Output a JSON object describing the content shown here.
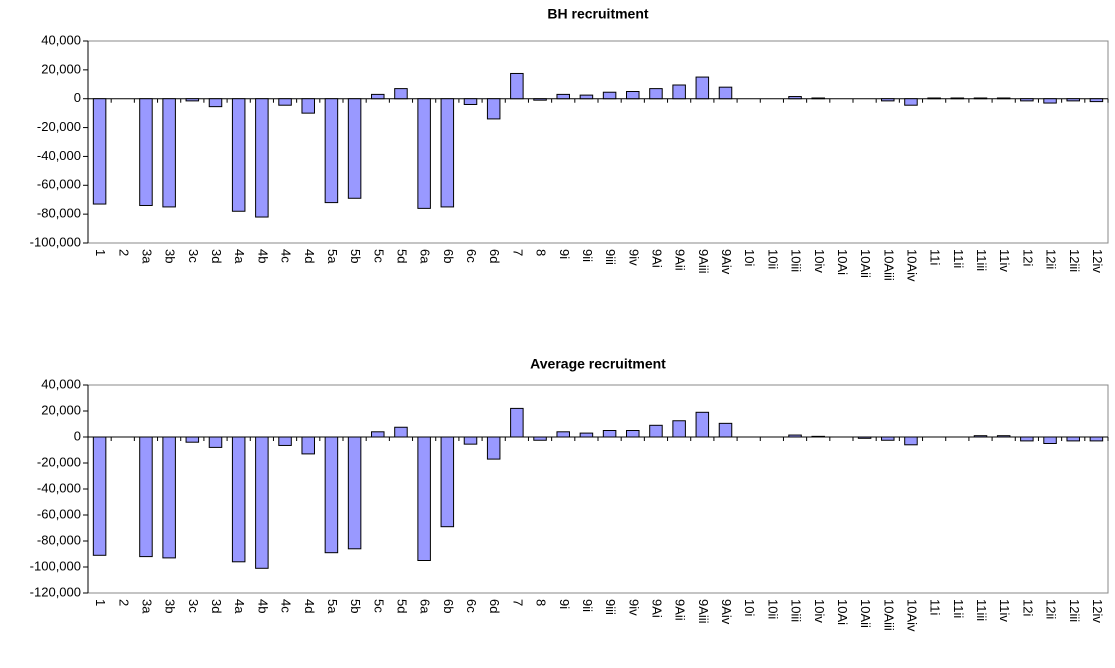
{
  "chart_data": [
    {
      "type": "bar",
      "title": "BH recruitment",
      "color": "#9999ff",
      "categories": [
        "1",
        "2",
        "3a",
        "3b",
        "3c",
        "3d",
        "4a",
        "4b",
        "4c",
        "4d",
        "5a",
        "5b",
        "5c",
        "5d",
        "6a",
        "6b",
        "6c",
        "6d",
        "7",
        "8",
        "9i",
        "9ii",
        "9iii",
        "9iv",
        "9Ai",
        "9Aii",
        "9Aiii",
        "9Aiv",
        "10i",
        "10ii",
        "10iii",
        "10iv",
        "10Ai",
        "10Aii",
        "10Aiii",
        "10Aiv",
        "11i",
        "11ii",
        "11iii",
        "11iv",
        "12i",
        "12ii",
        "12iii",
        "12iv"
      ],
      "values": [
        -73000,
        0,
        -74000,
        -75000,
        -1500,
        -5500,
        -78000,
        -82000,
        -4500,
        -10000,
        -72000,
        -69000,
        3000,
        7000,
        -76000,
        -75000,
        -4000,
        -14000,
        17500,
        -1000,
        3000,
        2500,
        4500,
        5000,
        7000,
        9500,
        15000,
        8000,
        0,
        0,
        1500,
        500,
        0,
        0,
        -1500,
        -4500,
        500,
        500,
        500,
        500,
        -1500,
        -3000,
        -1500,
        -2000
      ],
      "ylim": [
        -100000,
        40000
      ],
      "yticks": [
        {
          "value": -100000,
          "label": "-100,000"
        },
        {
          "value": -80000,
          "label": "-80,000"
        },
        {
          "value": -60000,
          "label": "-60,000"
        },
        {
          "value": -40000,
          "label": "-40,000"
        },
        {
          "value": -20000,
          "label": "-20,000"
        },
        0,
        {
          "value": 20000,
          "label": "20,000"
        },
        {
          "value": 40000,
          "label": "40,000"
        }
      ]
    },
    {
      "type": "bar",
      "title": "Average recruitment",
      "color": "#9999ff",
      "categories": [
        "1",
        "2",
        "3a",
        "3b",
        "3c",
        "3d",
        "4a",
        "4b",
        "4c",
        "4d",
        "5a",
        "5b",
        "5c",
        "5d",
        "6a",
        "6b",
        "6c",
        "6d",
        "7",
        "8",
        "9i",
        "9ii",
        "9iii",
        "9iv",
        "9Ai",
        "9Aii",
        "9Aiii",
        "9Aiv",
        "10i",
        "10ii",
        "10iii",
        "10iv",
        "10Ai",
        "10Aii",
        "10Aiii",
        "10Aiv",
        "11i",
        "11ii",
        "11iii",
        "11iv",
        "12i",
        "12ii",
        "12iii",
        "12iv"
      ],
      "values": [
        -91000,
        0,
        -92000,
        -93000,
        -4000,
        -8000,
        -96000,
        -101000,
        -6500,
        -13000,
        -89000,
        -86000,
        4000,
        7500,
        -95000,
        -69000,
        -5500,
        -17000,
        22000,
        -2500,
        4000,
        3000,
        5000,
        5000,
        9000,
        12500,
        19000,
        10500,
        0,
        0,
        1500,
        500,
        0,
        -1000,
        -2500,
        -6000,
        0,
        0,
        1000,
        1000,
        -3000,
        -5000,
        -3000,
        -3000
      ],
      "ylim": [
        -120000,
        40000
      ],
      "yticks": [
        {
          "value": -120000,
          "label": "-120,000"
        },
        {
          "value": -100000,
          "label": "-100,000"
        },
        {
          "value": -80000,
          "label": "-80,000"
        },
        {
          "value": -60000,
          "label": "-60,000"
        },
        {
          "value": -40000,
          "label": "-40,000"
        },
        {
          "value": -20000,
          "label": "-20,000"
        },
        0,
        {
          "value": 20000,
          "label": "20,000"
        },
        {
          "value": 40000,
          "label": "40,000"
        }
      ]
    }
  ]
}
